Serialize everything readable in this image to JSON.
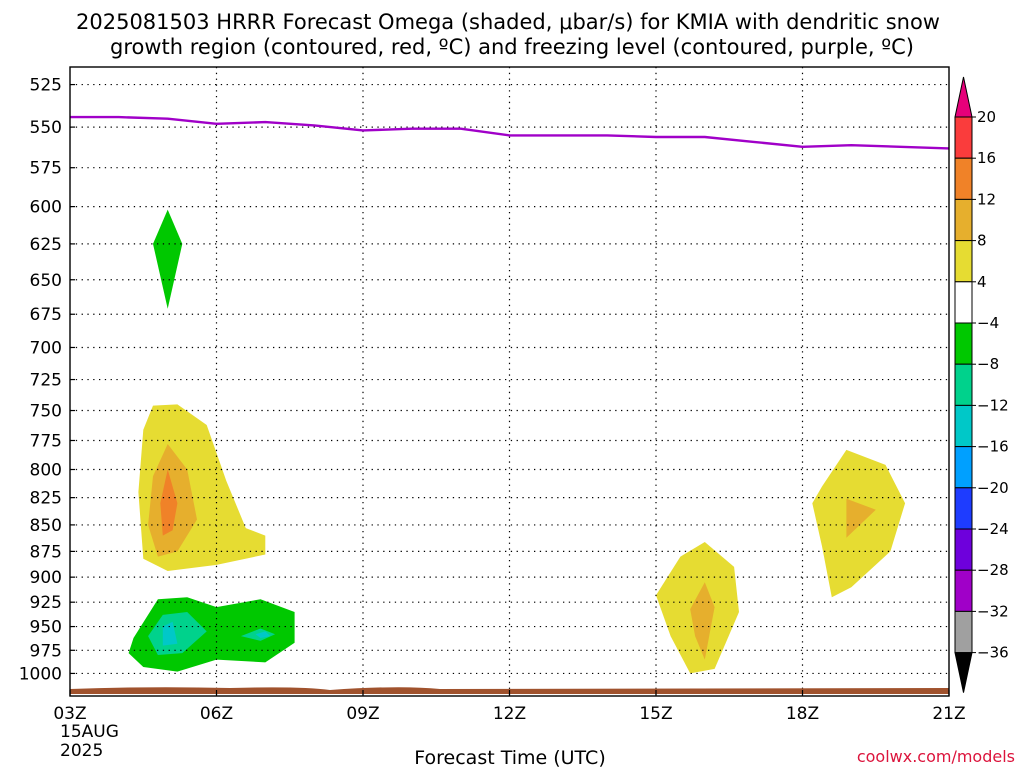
{
  "chart_data": {
    "type": "heatmap",
    "title_lines": [
      "2025081503 HRRR Forecast Omega (shaded, μbar/s) for KMIA with dendritic snow",
      "growth region (contoured, red, ºC) and freezing level (contoured, purple, ºC)"
    ],
    "xlabel": "Forecast Time (UTC)",
    "x_ticks": [
      "03Z",
      "06Z",
      "09Z",
      "12Z",
      "15Z",
      "18Z",
      "21Z"
    ],
    "x_tick_values": [
      0,
      3,
      6,
      9,
      12,
      15,
      18
    ],
    "x_date_lines": [
      "15AUG",
      "2025"
    ],
    "xlim": [
      0,
      18
    ],
    "y_ticks": [
      525,
      550,
      575,
      600,
      625,
      650,
      675,
      700,
      725,
      750,
      775,
      800,
      825,
      850,
      875,
      900,
      925,
      950,
      975,
      1000
    ],
    "ylim": [
      1025,
      515
    ],
    "y_scale": "log-pressure",
    "grid": true,
    "colorbar": {
      "levels": [
        -36,
        -32,
        -28,
        -24,
        -20,
        -16,
        -12,
        -8,
        -4,
        4,
        8,
        12,
        16,
        20
      ],
      "tick_labels": [
        "-36",
        "-32",
        "-28",
        "-24",
        "-20",
        "-16",
        "-12",
        "-8",
        "-4",
        "4",
        "8",
        "12",
        "16",
        "20"
      ],
      "colors": [
        "#000000",
        "#a0a0a0",
        "#a000c8",
        "#6e00dc",
        "#1e3cff",
        "#00a0ff",
        "#00c8c8",
        "#00d28c",
        "#00c800",
        "#ffffff",
        "#e6dc32",
        "#e6af2d",
        "#f08228",
        "#fa3c3c",
        "#e6007a"
      ]
    },
    "freezing_level": {
      "color": "#a000c8",
      "x": [
        0,
        1,
        2,
        3,
        4,
        5,
        6,
        7,
        8,
        9,
        10,
        11,
        12,
        13,
        14,
        15,
        16,
        17,
        18
      ],
      "pressure": [
        544,
        544,
        545,
        548,
        547,
        549,
        552,
        551,
        551,
        555,
        555,
        555,
        556,
        556,
        559,
        562,
        561,
        562,
        563
      ]
    },
    "omega_regions": [
      {
        "value": -6,
        "color": "#00c800",
        "points": [
          [
            2,
            602
          ],
          [
            2.3,
            625
          ],
          [
            2,
            671
          ],
          [
            1.7,
            625
          ]
        ]
      },
      {
        "value": 6,
        "color": "#e6dc32",
        "points": [
          [
            1.5,
            766
          ],
          [
            1.7,
            746
          ],
          [
            2.2,
            745
          ],
          [
            2.8,
            762
          ],
          [
            3.2,
            810
          ],
          [
            3.6,
            853
          ],
          [
            4,
            860
          ],
          [
            4,
            878
          ],
          [
            3,
            888
          ],
          [
            2,
            894
          ],
          [
            1.5,
            882
          ],
          [
            1.4,
            820
          ]
        ]
      },
      {
        "value": 10,
        "color": "#e6af2d",
        "points": [
          [
            1.7,
            806
          ],
          [
            2,
            778
          ],
          [
            2.4,
            800
          ],
          [
            2.6,
            845
          ],
          [
            2.2,
            875
          ],
          [
            1.8,
            880
          ],
          [
            1.6,
            850
          ]
        ]
      },
      {
        "value": 14,
        "color": "#f08228",
        "points": [
          [
            2,
            800
          ],
          [
            2.2,
            830
          ],
          [
            2.1,
            855
          ],
          [
            1.9,
            860
          ],
          [
            1.85,
            830
          ]
        ]
      },
      {
        "value": -6,
        "color": "#00c800",
        "points": [
          [
            1.3,
            962
          ],
          [
            1.8,
            922
          ],
          [
            2.4,
            920
          ],
          [
            3,
            930
          ],
          [
            3.9,
            922
          ],
          [
            4.6,
            935
          ],
          [
            4.6,
            967
          ],
          [
            4,
            988
          ],
          [
            3,
            985
          ],
          [
            2.2,
            998
          ],
          [
            1.5,
            993
          ],
          [
            1.2,
            978
          ]
        ]
      },
      {
        "value": -10,
        "color": "#00d28c",
        "points": [
          [
            1.6,
            960
          ],
          [
            1.9,
            938
          ],
          [
            2.4,
            935
          ],
          [
            2.8,
            955
          ],
          [
            2.3,
            978
          ],
          [
            1.8,
            980
          ]
        ]
      },
      {
        "value": -14,
        "color": "#00c8c8",
        "points": [
          [
            1.9,
            950
          ],
          [
            2.1,
            945
          ],
          [
            2.2,
            968
          ],
          [
            1.9,
            970
          ]
        ]
      },
      {
        "value": -10,
        "color": "#00d28c",
        "points": [
          [
            3.5,
            960
          ],
          [
            3.9,
            952
          ],
          [
            4.2,
            958
          ],
          [
            3.9,
            965
          ]
        ]
      },
      {
        "value": -14,
        "color": "#00c8c8",
        "points": [
          [
            3.8,
            958
          ],
          [
            4,
            955
          ],
          [
            4.1,
            960
          ],
          [
            3.9,
            962
          ]
        ]
      },
      {
        "value": 6,
        "color": "#e6dc32",
        "points": [
          [
            12,
            918
          ],
          [
            12.5,
            880
          ],
          [
            13,
            866
          ],
          [
            13.6,
            890
          ],
          [
            13.7,
            935
          ],
          [
            13.2,
            995
          ],
          [
            12.7,
            1000
          ],
          [
            12.3,
            960
          ]
        ]
      },
      {
        "value": 10,
        "color": "#e6af2d",
        "points": [
          [
            12.7,
            932
          ],
          [
            13,
            905
          ],
          [
            13.2,
            930
          ],
          [
            13,
            985
          ],
          [
            12.8,
            960
          ]
        ]
      },
      {
        "value": 6,
        "color": "#e6dc32",
        "points": [
          [
            15.4,
            815
          ],
          [
            15.9,
            783
          ],
          [
            16.7,
            796
          ],
          [
            17.1,
            830
          ],
          [
            16.8,
            875
          ],
          [
            16,
            910
          ],
          [
            15.6,
            920
          ],
          [
            15.4,
            870
          ],
          [
            15.2,
            830
          ]
        ]
      },
      {
        "value": 10,
        "color": "#e6af2d",
        "points": [
          [
            15.9,
            826
          ],
          [
            16.5,
            836
          ],
          [
            15.9,
            862
          ]
        ]
      }
    ],
    "surface_band": {
      "color": "#a0522d"
    }
  },
  "credit": "coolwx.com/models"
}
